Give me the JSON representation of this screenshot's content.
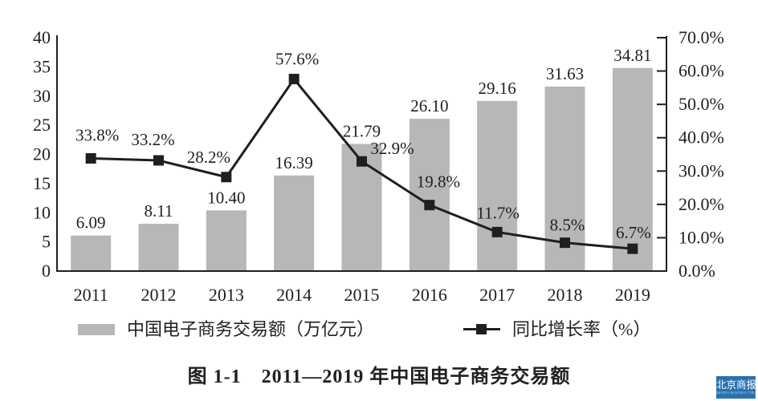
{
  "chart_data": {
    "type": "combo",
    "categories": [
      "2011",
      "2012",
      "2013",
      "2014",
      "2015",
      "2016",
      "2017",
      "2018",
      "2019"
    ],
    "series": [
      {
        "name": "中国电子商务交易额（万亿元）",
        "type": "bar",
        "axis": "left",
        "color": "#b7b7b9",
        "values": [
          6.09,
          8.11,
          10.4,
          16.39,
          21.79,
          26.1,
          29.16,
          31.63,
          34.81
        ],
        "labels": [
          "6.09",
          "8.11",
          "10.40",
          "16.39",
          "21.79",
          "26.10",
          "29.16",
          "31.63",
          "34.81"
        ]
      },
      {
        "name": "同比增长率（%）",
        "type": "line",
        "axis": "right",
        "color": "#1f1f1f",
        "values": [
          33.8,
          33.2,
          28.2,
          57.6,
          32.9,
          19.8,
          11.7,
          8.5,
          6.7
        ],
        "labels": [
          "33.8%",
          "33.2%",
          "28.2%",
          "57.6%",
          "32.9%",
          "19.8%",
          "11.7%",
          "8.5%",
          "6.7%"
        ]
      }
    ],
    "left_axis": {
      "min": 0,
      "max": 40,
      "step": 5,
      "ticks": [
        "0",
        "5",
        "10",
        "15",
        "20",
        "25",
        "30",
        "35",
        "40"
      ]
    },
    "right_axis": {
      "min": 0,
      "max": 70,
      "step": 10,
      "ticks": [
        "0.0%",
        "10.0%",
        "20.0%",
        "30.0%",
        "40.0%",
        "50.0%",
        "60.0%",
        "70.0%"
      ]
    },
    "grid": false,
    "legend_position": "bottom",
    "title": "图 1-1　2011—2019 年中国电子商务交易额"
  },
  "caption": "图 1-1　2011—2019 年中国电子商务交易额",
  "logo": {
    "main": "北京商报",
    "sub": "BEIJING BUSINESS TODAY",
    "color": "#2a71ad"
  }
}
